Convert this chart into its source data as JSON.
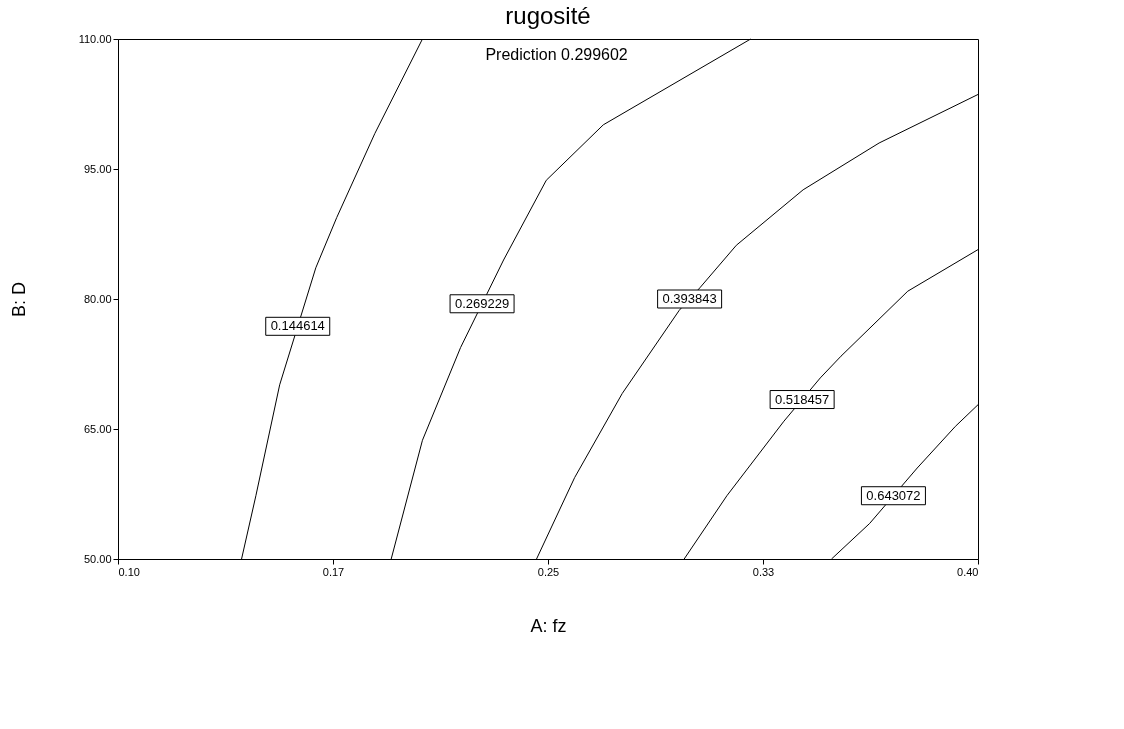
{
  "chart_data": {
    "type": "line",
    "title": "rugosité",
    "xlabel": "A: fz",
    "ylabel": "B: D",
    "xlim": [
      0.1,
      0.4
    ],
    "ylim": [
      50,
      110
    ],
    "xticks": [
      {
        "value": 0.1,
        "label": "0.10"
      },
      {
        "value": 0.175,
        "label": "0.17"
      },
      {
        "value": 0.25,
        "label": "0.25"
      },
      {
        "value": 0.325,
        "label": "0.33"
      },
      {
        "value": 0.4,
        "label": "0.40"
      }
    ],
    "yticks": [
      {
        "value": 50,
        "label": "50.00"
      },
      {
        "value": 65,
        "label": "65.00"
      },
      {
        "value": 80,
        "label": "80.00"
      },
      {
        "value": 95,
        "label": "95.00"
      },
      {
        "value": 110,
        "label": "110.00"
      }
    ],
    "grid": false,
    "legend": false,
    "marker": "none",
    "line_style": "solid",
    "series": [
      {
        "name": "0.144614",
        "color": "#000000",
        "x": [
          0.1431,
          0.1481,
          0.1564,
          0.169,
          0.1763,
          0.1896,
          0.2062
        ],
        "values": [
          50,
          57.3,
          70.1,
          83.6,
          89.4,
          99.1,
          110
        ]
      },
      {
        "name": "0.269229",
        "color": "#000000",
        "x": [
          0.1953,
          0.2062,
          0.2195,
          0.2345,
          0.2494,
          0.2693,
          0.3207
        ],
        "values": [
          50,
          63.7,
          74.4,
          84.5,
          93.7,
          100.1,
          110
        ]
      },
      {
        "name": "0.393843",
        "color": "#000000",
        "x": [
          0.246,
          0.2593,
          0.2759,
          0.2958,
          0.303,
          0.3157,
          0.339,
          0.3655,
          0.4
        ],
        "values": [
          50,
          59.4,
          69.1,
          78.7,
          81.3,
          86.2,
          92.6,
          98.0,
          103.6
        ]
      },
      {
        "name": "0.518457",
        "color": "#000000",
        "x": [
          0.2975,
          0.3124,
          0.3323,
          0.345,
          0.3522,
          0.3755,
          0.4
        ],
        "values": [
          50,
          57.3,
          65.9,
          70.9,
          73.4,
          80.9,
          85.7
        ]
      },
      {
        "name": "0.643072",
        "color": "#000000",
        "x": [
          0.3489,
          0.3622,
          0.3788,
          0.3921,
          0.4
        ],
        "values": [
          50,
          54.1,
          60.5,
          65.3,
          67.8
        ]
      }
    ],
    "annotations": [
      "Prediction 0.299602"
    ]
  }
}
